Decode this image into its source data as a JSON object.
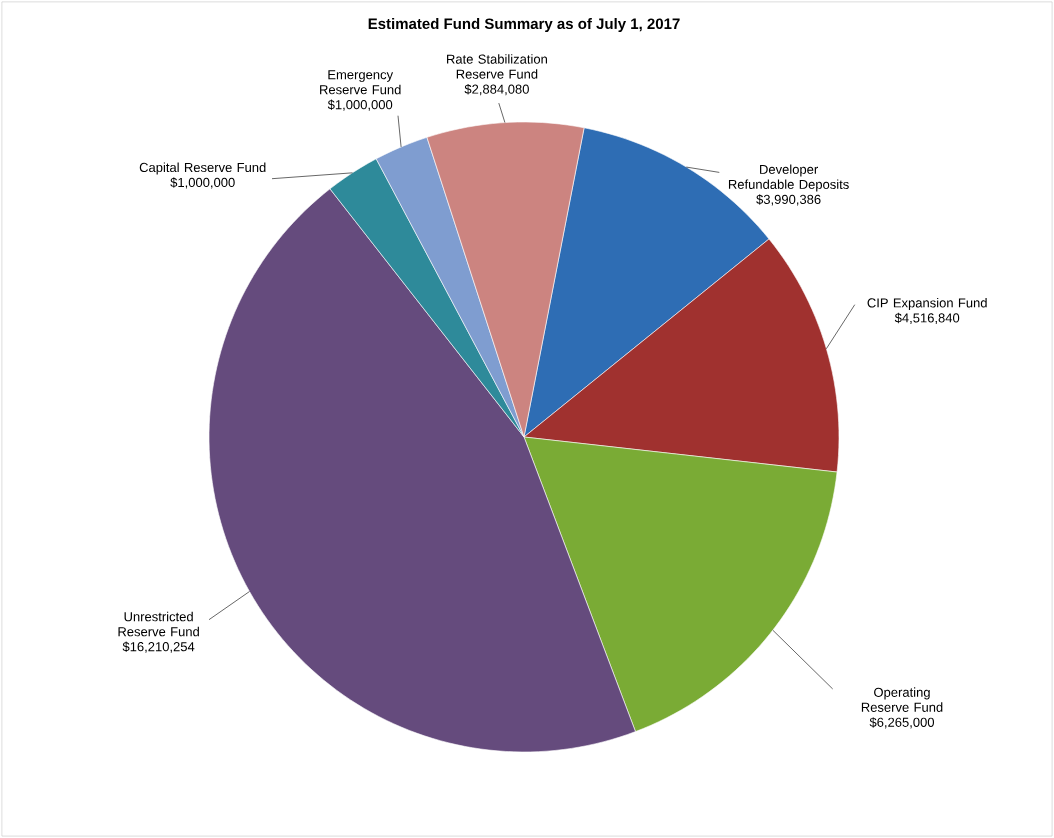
{
  "chart_data": {
    "type": "pie",
    "title": "Estimated Fund Summary as of July 1, 2017",
    "categories": [
      "Developer Refundable Deposits",
      "CIP Expansion Fund",
      "Operating Reserve Fund",
      "Unrestricted Reserve Fund",
      "Capital Reserve Fund",
      "Emergency Reserve Fund",
      "Rate Stabilization Reserve Fund"
    ],
    "values": [
      3990386,
      4516840,
      6265000,
      16210254,
      1000000,
      1000000,
      2884080
    ],
    "value_labels": [
      "$3,990,386",
      "$4,516,840",
      "$6,265,000",
      "$16,210,254",
      "$1,000,000",
      "$1,000,000",
      "$2,884,080"
    ],
    "colors": [
      "#2e6db4",
      "#a0312f",
      "#7aab35",
      "#654b7d",
      "#2e8a9a",
      "#7f9dd0",
      "#cc8480"
    ]
  }
}
